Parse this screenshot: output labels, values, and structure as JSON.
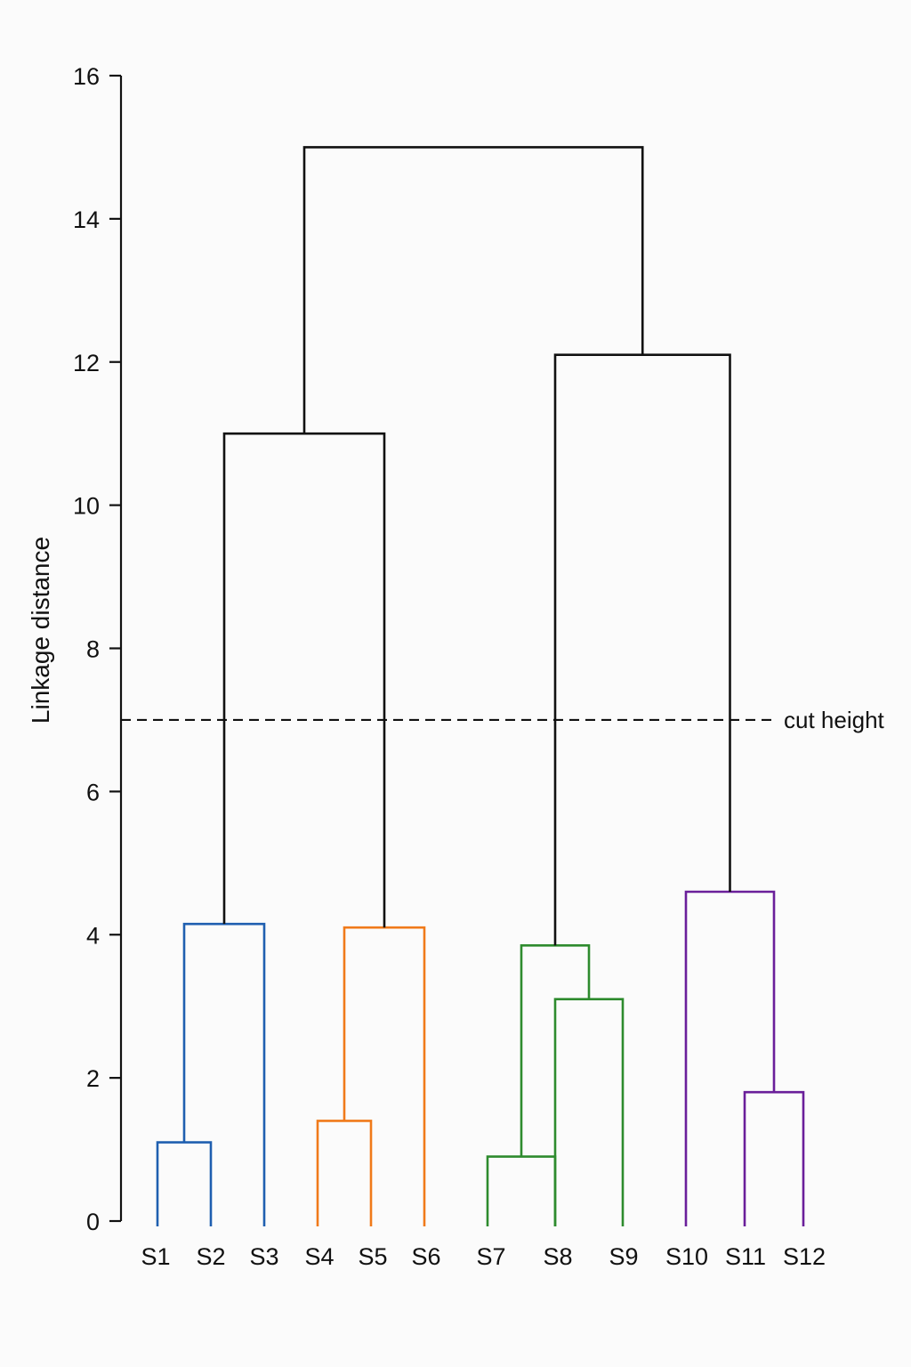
{
  "chart_data": {
    "type": "dendrogram",
    "xlabel": "",
    "ylabel": "Linkage distance",
    "ylim": [
      0,
      16
    ],
    "yticks": [
      0,
      2,
      4,
      6,
      8,
      10,
      12,
      14,
      16
    ],
    "leaves": [
      "S1",
      "S2",
      "S3",
      "S4",
      "S5",
      "S6",
      "S7",
      "S8",
      "S9",
      "S10",
      "S11",
      "S12"
    ],
    "merges": [
      {
        "id": "m1",
        "children": [
          "S1",
          "S2"
        ],
        "height": 1.1,
        "color": "#1f5fb0"
      },
      {
        "id": "m2",
        "children": [
          "m1",
          "S3"
        ],
        "height": 4.15,
        "color": "#1f5fb0"
      },
      {
        "id": "m3",
        "children": [
          "S4",
          "S5"
        ],
        "height": 1.4,
        "color": "#f07a1a"
      },
      {
        "id": "m4",
        "children": [
          "m3",
          "S6"
        ],
        "height": 4.1,
        "color": "#f07a1a"
      },
      {
        "id": "m5",
        "children": [
          "S7",
          "S8"
        ],
        "height": 0.9,
        "color": "#2e8b2e"
      },
      {
        "id": "m6",
        "children": [
          "S8",
          "S9"
        ],
        "height": 3.1,
        "color": "#2e8b2e"
      },
      {
        "id": "m7",
        "children": [
          "m5",
          "m6"
        ],
        "height": 3.85,
        "color": "#2e8b2e"
      },
      {
        "id": "m8",
        "children": [
          "S11",
          "S12"
        ],
        "height": 1.8,
        "color": "#6a1f9a"
      },
      {
        "id": "m9",
        "children": [
          "S10",
          "m8"
        ],
        "height": 4.6,
        "color": "#6a1f9a"
      },
      {
        "id": "m10",
        "children": [
          "m2",
          "m4"
        ],
        "height": 11.0,
        "color": "#111111"
      },
      {
        "id": "m11",
        "children": [
          "m7",
          "m9"
        ],
        "height": 12.1,
        "color": "#111111"
      },
      {
        "id": "m12",
        "children": [
          "m10",
          "m11"
        ],
        "height": 15.0,
        "color": "#111111"
      }
    ],
    "cut_height": {
      "value": 7.0,
      "label": "cut height"
    },
    "cluster_colors": [
      "#1f5fb0",
      "#f07a1a",
      "#2e8b2e",
      "#6a1f9a"
    ],
    "grid": false,
    "legend": "none"
  }
}
